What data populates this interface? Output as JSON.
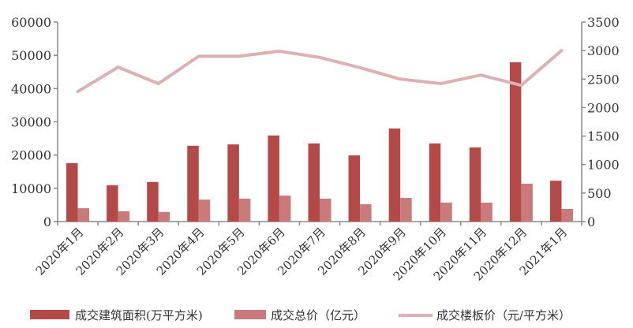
{
  "chart_data": {
    "type": "bar",
    "categories": [
      "2020年1月",
      "2020年2月",
      "2020年3月",
      "2020年4月",
      "2020年5月",
      "2020年6月",
      "2020年7月",
      "2020年8月",
      "2020年9月",
      "2020年10月",
      "2020年11月",
      "2020年12月",
      "2021年1月"
    ],
    "series": [
      {
        "name": "成交建筑面积(万平方米)",
        "type": "bar",
        "axis": "left",
        "color": "#b34a48",
        "values": [
          17600,
          10900,
          11900,
          22800,
          23200,
          25900,
          23500,
          19900,
          28000,
          23500,
          22300,
          47900,
          12300
        ]
      },
      {
        "name": "成交总价（亿元）",
        "type": "bar",
        "axis": "left",
        "color": "#c97b7b",
        "values": [
          4000,
          3100,
          2900,
          6600,
          6900,
          7800,
          6900,
          5200,
          7100,
          5700,
          5700,
          11400,
          3800
        ]
      },
      {
        "name": "成交楼板价（元/平方米）",
        "type": "line",
        "axis": "right",
        "color": "#ddb1b1",
        "values": [
          2280,
          2710,
          2420,
          2900,
          2900,
          2990,
          2880,
          2700,
          2500,
          2420,
          2570,
          2390,
          3000
        ]
      }
    ],
    "left_axis": {
      "min": 0,
      "max": 60000,
      "ticks": [
        "0",
        "10000",
        "20000",
        "30000",
        "40000",
        "50000",
        "60000"
      ]
    },
    "right_axis": {
      "min": 0,
      "max": 3500,
      "ticks": [
        "0",
        "500",
        "1000",
        "1500",
        "2000",
        "2500",
        "3000",
        "3500"
      ]
    },
    "grid": false,
    "legend_position": "bottom"
  }
}
